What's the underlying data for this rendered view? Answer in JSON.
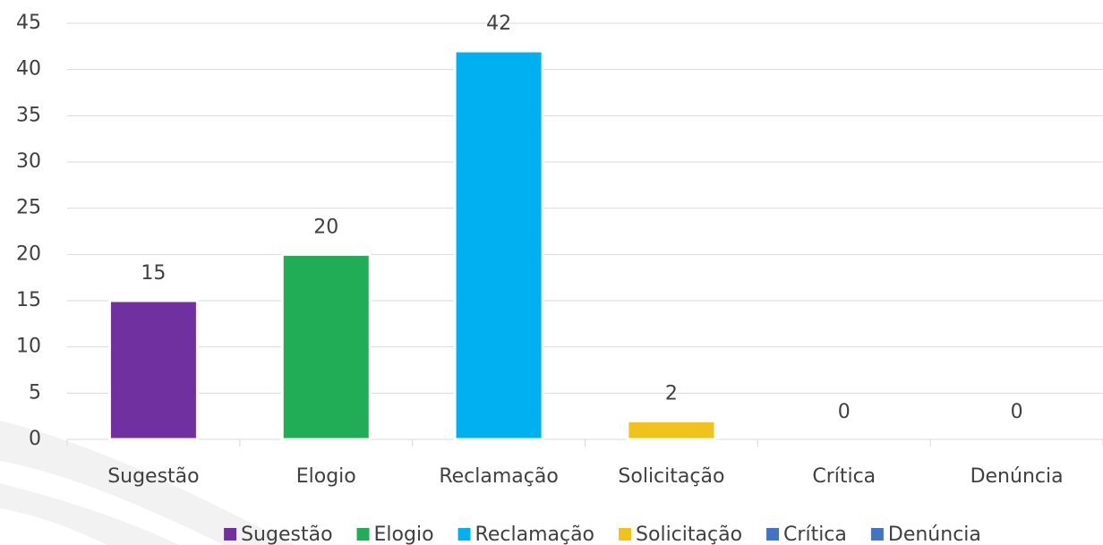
{
  "chart_data": {
    "type": "bar",
    "categories": [
      "Sugestão",
      "Elogio",
      "Reclamação",
      "Solicitação",
      "Crítica",
      "Denúncia"
    ],
    "values": [
      15,
      20,
      42,
      2,
      0,
      0
    ],
    "colors": [
      "#7030a0",
      "#21ad55",
      "#00b0f0",
      "#f0c21b",
      "#4472c4",
      "#4472c4"
    ],
    "ylim": [
      0,
      45
    ],
    "yticks": [
      0,
      5,
      10,
      15,
      20,
      25,
      30,
      35,
      40,
      45
    ],
    "grid": true,
    "legend": "bottom"
  }
}
